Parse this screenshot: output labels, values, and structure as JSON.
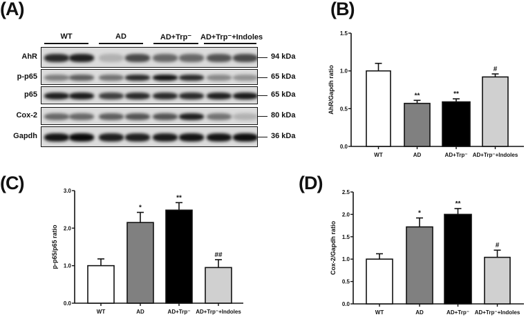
{
  "figure": {
    "panels": {
      "A": {
        "letter": "(A)"
      },
      "B": {
        "letter": "(B)"
      },
      "C": {
        "letter": "(C)"
      },
      "D": {
        "letter": "(D)"
      }
    },
    "blot": {
      "groups": [
        "WT",
        "AD",
        "AD+Trp⁻",
        "AD+Trp⁻+Indoles"
      ],
      "rows": [
        {
          "label": "AhR",
          "kda": "94 kDa"
        },
        {
          "label": "p-p65",
          "kda": "65 kDa"
        },
        {
          "label": "p65",
          "kda": "65 kDa"
        },
        {
          "label": "Cox-2",
          "kda": "80 kDa"
        },
        {
          "label": "Gapdh",
          "kda": "36 kDa"
        }
      ]
    },
    "colors": {
      "WT": "#ffffff",
      "AD": "#808080",
      "AD+Trp-": "#000000",
      "Indoles": "#d0d0d0"
    }
  },
  "chart_data": [
    {
      "panel": "B",
      "type": "bar",
      "title": "",
      "xlabel": "",
      "ylabel": "AhR/Gapdh ratio",
      "categories": [
        "WT",
        "AD",
        "AD+Trp⁻",
        "AD+Trp⁻+Indoles"
      ],
      "values": [
        1.0,
        0.57,
        0.59,
        0.92
      ],
      "error_upper": [
        1.1,
        0.61,
        0.63,
        0.96
      ],
      "annotations": [
        "",
        "**",
        "**",
        "#"
      ],
      "ylim": [
        0,
        1.5
      ],
      "yticks": [
        "0.0",
        "0.5",
        "1.0",
        "1.5"
      ],
      "grid": false,
      "legend": "none"
    },
    {
      "panel": "C",
      "type": "bar",
      "title": "",
      "xlabel": "",
      "ylabel": "p-p65/p65 ratio",
      "categories": [
        "WT",
        "AD",
        "AD+Trp⁻",
        "AD+Trp⁻+Indoles"
      ],
      "values": [
        1.0,
        2.15,
        2.48,
        0.95
      ],
      "error_upper": [
        1.18,
        2.42,
        2.68,
        1.16
      ],
      "annotations": [
        "",
        "*",
        "**",
        "##"
      ],
      "ylim": [
        0,
        3.0
      ],
      "yticks": [
        "0.0",
        "1.0",
        "2.0",
        "3.0"
      ],
      "grid": false,
      "legend": "none"
    },
    {
      "panel": "D",
      "type": "bar",
      "title": "",
      "xlabel": "",
      "ylabel": "Cox-2/Gapdh ratio",
      "categories": [
        "WT",
        "AD",
        "AD+Trp⁻",
        "AD+Trp⁻+Indoles"
      ],
      "values": [
        1.0,
        1.72,
        2.0,
        1.04
      ],
      "error_upper": [
        1.12,
        1.92,
        2.13,
        1.2
      ],
      "annotations": [
        "",
        "*",
        "**",
        "#"
      ],
      "ylim": [
        0,
        2.5
      ],
      "yticks": [
        "0.0",
        "0.5",
        "1.0",
        "1.5",
        "2.0",
        "2.5"
      ],
      "grid": false,
      "legend": "none"
    }
  ]
}
